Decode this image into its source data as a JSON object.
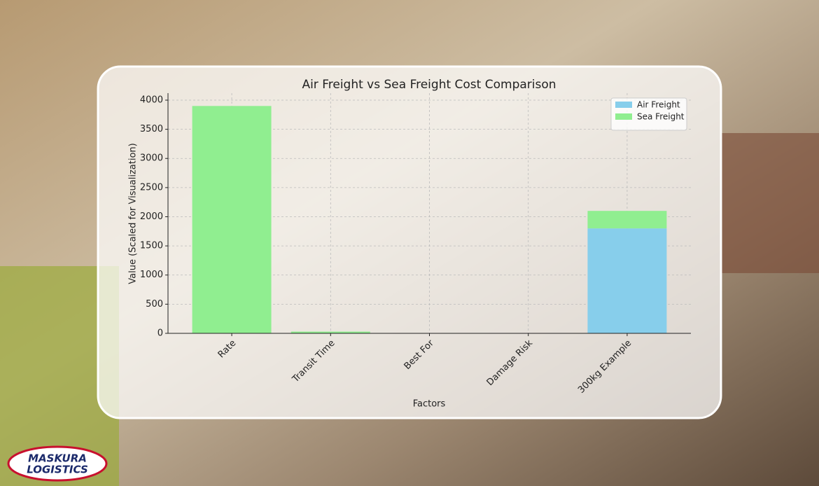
{
  "chart_data": {
    "type": "stacked_bar",
    "title": "Air Freight vs Sea Freight Cost Comparison",
    "x_label": "Factors",
    "y_label": "Value (Scaled for Visualization)",
    "categories": [
      "Rate",
      "Transit Time",
      "Best For",
      "Damage Risk",
      "300kg Example"
    ],
    "series": [
      {
        "name": "Air Freight",
        "color": "#87ceeb",
        "values": [
          0,
          0,
          0,
          0,
          1800
        ]
      },
      {
        "name": "Sea Freight",
        "color": "#90ee90",
        "values": [
          3900,
          30,
          0,
          0,
          300
        ]
      }
    ],
    "ylim": [
      0,
      4120
    ],
    "yticks": [
      0,
      500,
      1000,
      1500,
      2000,
      2500,
      3000,
      3500,
      4000
    ],
    "grid": true,
    "legend": "upper right"
  },
  "logo": {
    "line1": "MASKURA",
    "line2": "LOGISTICS"
  }
}
